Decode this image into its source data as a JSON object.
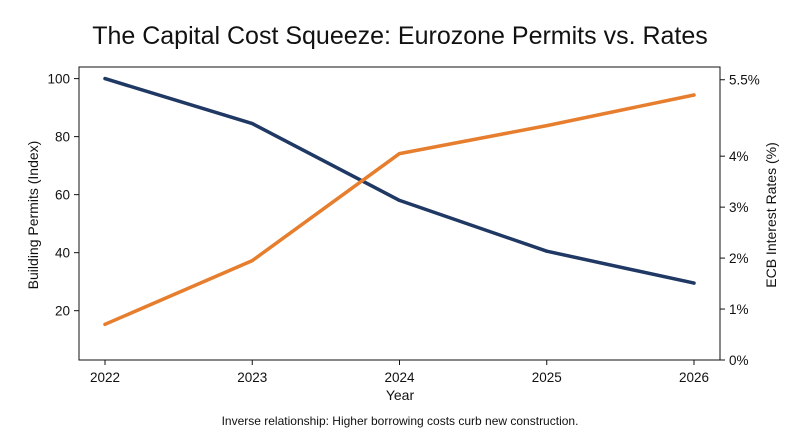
{
  "chart_data": {
    "type": "line",
    "title": "The Capital Cost Squeeze: Eurozone Permits vs. Rates",
    "caption": "Inverse relationship: Higher borrowing costs curb new construction.",
    "xlabel": "Year",
    "ylabel_left": "Building Permits (Index)",
    "ylabel_right": "ECB Interest Rates (%)",
    "x": [
      2022,
      2023,
      2024,
      2025,
      2026
    ],
    "x_tick_labels": [
      "2022",
      "2023",
      "2024",
      "2025",
      "2026"
    ],
    "y_left_ticks": [
      20,
      40,
      60,
      80,
      100
    ],
    "y_left_tick_labels": [
      "20",
      "40",
      "60",
      "80",
      "100"
    ],
    "y_right_ticks": [
      0,
      1,
      2,
      3,
      4,
      5.5
    ],
    "y_right_tick_labels": [
      "0%",
      "1%",
      "2%",
      "3%",
      "4%",
      "5.5%"
    ],
    "ylim_left": [
      3,
      104
    ],
    "ylim_right": [
      0,
      5.75
    ],
    "grid": false,
    "series": [
      {
        "axis": "left",
        "color": "#1f3864",
        "values": [
          100,
          84.5,
          58,
          40.5,
          29.5
        ]
      },
      {
        "axis": "right",
        "color": "#e67e2e",
        "values": [
          0.7,
          1.95,
          4.05,
          4.6,
          5.2
        ]
      }
    ]
  }
}
